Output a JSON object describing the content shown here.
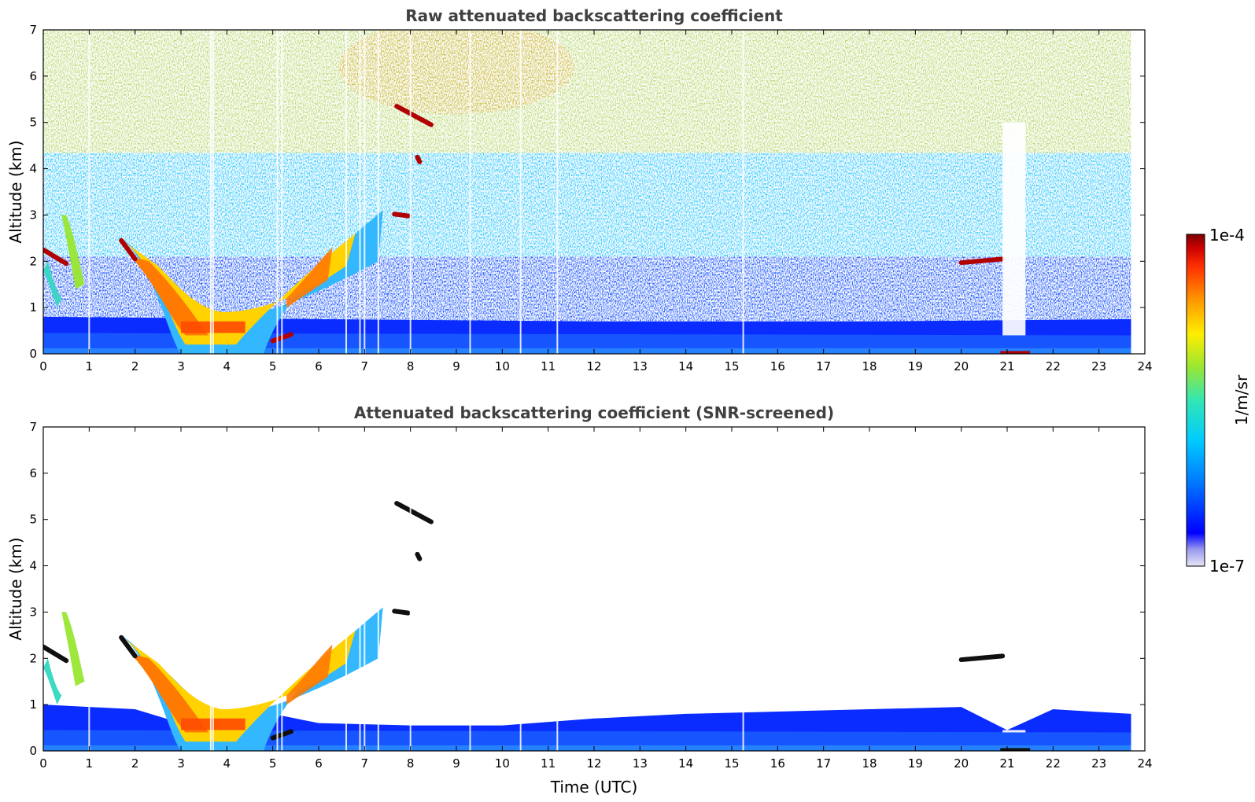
{
  "chart_data": [
    {
      "type": "heatmap",
      "title": "Raw attenuated backscattering coefficient",
      "xlabel": "",
      "ylabel": "Altitude (km)",
      "xlim": [
        0,
        24
      ],
      "ylim": [
        0,
        7
      ],
      "x_ticks": [
        "0",
        "1",
        "2",
        "3",
        "4",
        "5",
        "6",
        "7",
        "8",
        "9",
        "10",
        "11",
        "12",
        "13",
        "14",
        "15",
        "16",
        "17",
        "18",
        "19",
        "20",
        "21",
        "22",
        "23",
        "24"
      ],
      "y_ticks": [
        "0",
        "1",
        "2",
        "3",
        "4",
        "5",
        "6",
        "7"
      ],
      "data_end_time": 23.7,
      "features": [
        {
          "name": "boundary-layer",
          "description": "dense near-surface aerosol layer",
          "altitude_range_km": [
            0,
            0.9
          ]
        },
        {
          "name": "early-cloud-1",
          "time_range": [
            0,
            0.5
          ],
          "altitude_km": 2.2
        },
        {
          "name": "rising-plume",
          "time_range": [
            1.7,
            7.5
          ],
          "altitude_range_km": [
            0.3,
            3.0
          ]
        },
        {
          "name": "mid-cloud-5km",
          "time_range": [
            7.7,
            8.5
          ],
          "altitude_km": 5.1
        },
        {
          "name": "mid-cloud-3km",
          "time_range": [
            7.6,
            8.0
          ],
          "altitude_km": 3.0
        },
        {
          "name": "evening-cloud-2km",
          "time_range": [
            20.0,
            20.9
          ],
          "altitude_km": 2.0
        },
        {
          "name": "data-gap-column",
          "time_range": [
            20.9,
            21.4
          ],
          "altitude_range_km": [
            0.4,
            5.0
          ]
        }
      ]
    },
    {
      "type": "heatmap",
      "title": "Attenuated backscattering coefficient (SNR-screened)",
      "xlabel": "Time (UTC)",
      "ylabel": "Altitude (km)",
      "xlim": [
        0,
        24
      ],
      "ylim": [
        0,
        7
      ],
      "x_ticks": [
        "0",
        "1",
        "2",
        "3",
        "4",
        "5",
        "6",
        "7",
        "8",
        "9",
        "10",
        "11",
        "12",
        "13",
        "14",
        "15",
        "16",
        "17",
        "18",
        "19",
        "20",
        "21",
        "22",
        "23",
        "24"
      ],
      "y_ticks": [
        "0",
        "1",
        "2",
        "3",
        "4",
        "5",
        "6",
        "7"
      ],
      "data_end_time": 23.7,
      "features": [
        {
          "name": "boundary-layer-top",
          "description": "screened aerosol layer top height (km) vs time",
          "time": [
            0,
            2,
            3,
            4,
            5,
            6,
            8,
            10,
            12,
            14,
            16,
            18,
            20,
            21,
            22,
            23.7
          ],
          "top_km": [
            1.0,
            0.9,
            0.6,
            0.7,
            0.8,
            0.6,
            0.55,
            0.55,
            0.7,
            0.8,
            0.85,
            0.9,
            0.95,
            0.45,
            0.9,
            0.8
          ]
        }
      ]
    }
  ],
  "colorbar": {
    "label": "1/m/sr",
    "max_label": "1e-4",
    "min_label": "1e-7",
    "scale": "log",
    "range": [
      1e-07,
      0.0001
    ],
    "colormap": [
      "#e6e6f5",
      "#0000ff",
      "#0077ff",
      "#00ccff",
      "#33e6b3",
      "#99e633",
      "#ffee00",
      "#ff9900",
      "#ff3300",
      "#cc0000",
      "#7a0000"
    ]
  }
}
